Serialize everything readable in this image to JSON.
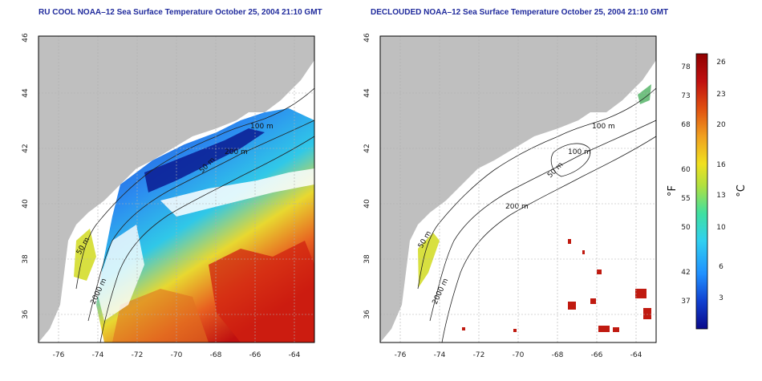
{
  "left_panel": {
    "title": "RU COOL NOAA–12 Sea Surface Temperature October 25, 2004 21:10 GMT"
  },
  "right_panel": {
    "title": "DECLOUDED NOAA–12 Sea Surface Temperature October 25, 2004 21:10 GMT"
  },
  "axes": {
    "lon_ticks": [
      "-76",
      "-74",
      "-72",
      "-70",
      "-68",
      "-66",
      "-64"
    ],
    "lat_ticks": [
      "46",
      "44",
      "42",
      "40",
      "38",
      "36"
    ]
  },
  "contour_labels": {
    "left": [
      "100 m",
      "200 m",
      "50 m",
      "50 m",
      "2000 m"
    ],
    "right": [
      "100 m",
      "100 m",
      "50 m",
      "200 m",
      "50 m",
      "2000 m"
    ]
  },
  "colorbar": {
    "fahrenheit_label": "°F",
    "celsius_label": "°C",
    "fahrenheit_ticks": [
      "78",
      "73",
      "68",
      "60",
      "55",
      "50",
      "42",
      "37"
    ],
    "celsius_ticks": [
      "26",
      "23",
      "20",
      "16",
      "13",
      "10",
      "6",
      "3"
    ],
    "colors": [
      "#0a0a8a",
      "#1040d0",
      "#2090ff",
      "#30d0f0",
      "#40e0a0",
      "#b0e040",
      "#f0e020",
      "#f0a020",
      "#e05010",
      "#c01010",
      "#900000"
    ]
  },
  "colors": {
    "land": "#bfbfbf",
    "cloud": "#ffffff",
    "grid": "#b0b0b0",
    "title": "#1f2a9c"
  }
}
